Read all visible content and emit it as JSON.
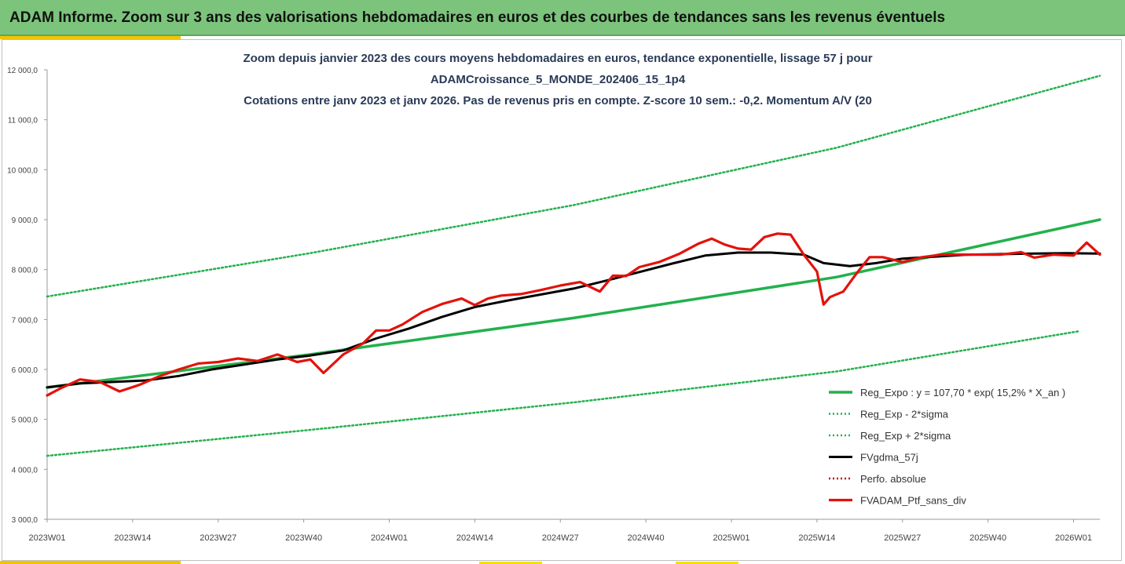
{
  "header": {
    "title": "ADAM Informe. Zoom sur 3 ans des valorisations hebdomadaires en euros et des courbes de tendances sans les revenus éventuels"
  },
  "chart_data": {
    "type": "line",
    "title_lines": [
      "Zoom depuis janvier 2023 des cours moyens hebdomadaires  en euros, tendance exponentielle, lissage 57 j pour",
      "ADAMCroissance_5_MONDE_202406_15_1p4",
      "Cotations entre janv 2023 et janv 2026. Pas de revenus pris en compte. Z-score 10 sem.: -0,2. Momentum  A/V (20"
    ],
    "xlabel": "",
    "ylabel": "",
    "ylim": [
      3000,
      12000
    ],
    "y_ticks": [
      3000,
      4000,
      5000,
      6000,
      7000,
      8000,
      9000,
      10000,
      11000,
      12000
    ],
    "y_tick_labels": [
      "3 000,0",
      "4 000,0",
      "5 000,0",
      "6 000,0",
      "7 000,0",
      "8 000,0",
      "9 000,0",
      "10 000,0",
      "11 000,0",
      "12 000,0"
    ],
    "x_tick_labels": [
      "2023W01",
      "2023W14",
      "2023W27",
      "2023W40",
      "2024W01",
      "2024W14",
      "2024W27",
      "2024W40",
      "2025W01",
      "2025W14",
      "2025W27",
      "2025W40",
      "2026W01"
    ],
    "x_tick_weeks": [
      0,
      13,
      26,
      39,
      52,
      65,
      78,
      91,
      104,
      117,
      130,
      143,
      156
    ],
    "x_range_weeks": [
      0,
      160
    ],
    "series": [
      {
        "name": "Reg_Expo : y = 107,70 * exp( 15,2% *  X_an )",
        "color": "#22b14c",
        "style": "solid",
        "x": [
          0,
          40,
          80,
          120,
          160
        ],
        "values": [
          5640,
          6300,
          7030,
          7850,
          9000
        ]
      },
      {
        "name": "Reg_Exp - 2*sigma",
        "color": "#22b14c",
        "style": "dotted",
        "x": [
          0,
          40,
          80,
          120,
          157
        ],
        "values": [
          4270,
          4790,
          5340,
          5960,
          6770
        ]
      },
      {
        "name": "Reg_Exp + 2*sigma",
        "color": "#22b14c",
        "style": "dotted",
        "x": [
          0,
          40,
          80,
          120,
          160
        ],
        "values": [
          7460,
          8330,
          9290,
          10440,
          11880
        ]
      },
      {
        "name": "FVgdma_57j",
        "color": "#000000",
        "style": "solid",
        "x": [
          0,
          5,
          10,
          15,
          20,
          25,
          30,
          35,
          40,
          45,
          50,
          55,
          60,
          65,
          70,
          75,
          80,
          85,
          90,
          95,
          100,
          105,
          110,
          115,
          118,
          122,
          126,
          130,
          135,
          140,
          145,
          150,
          155,
          160
        ],
        "values": [
          5640,
          5720,
          5750,
          5780,
          5870,
          6000,
          6100,
          6200,
          6280,
          6380,
          6620,
          6820,
          7050,
          7250,
          7380,
          7500,
          7620,
          7780,
          7950,
          8120,
          8280,
          8340,
          8340,
          8300,
          8130,
          8070,
          8130,
          8220,
          8260,
          8300,
          8310,
          8320,
          8330,
          8320
        ]
      },
      {
        "name": "Perfo. absolue",
        "color": "#c00000",
        "style": "dotted",
        "x": [],
        "values": []
      },
      {
        "name": "FVADAM_Ptf_sans_div",
        "color": "#e3120b",
        "style": "solid",
        "x": [
          0,
          2,
          5,
          8,
          11,
          14,
          17,
          20,
          23,
          26,
          29,
          32,
          35,
          38,
          40,
          42,
          45,
          48,
          50,
          52,
          54,
          57,
          60,
          63,
          65,
          67,
          69,
          72,
          75,
          78,
          81,
          84,
          86,
          88,
          90,
          93,
          96,
          99,
          101,
          103,
          105,
          107,
          109,
          111,
          113,
          115,
          117,
          118,
          119,
          121,
          123,
          125,
          127,
          130,
          133,
          136,
          139,
          142,
          145,
          148,
          150,
          153,
          156,
          158,
          160
        ],
        "values": [
          5480,
          5620,
          5800,
          5750,
          5560,
          5690,
          5860,
          6000,
          6120,
          6150,
          6220,
          6170,
          6300,
          6150,
          6200,
          5930,
          6300,
          6520,
          6780,
          6780,
          6900,
          7150,
          7310,
          7420,
          7290,
          7420,
          7480,
          7510,
          7590,
          7680,
          7750,
          7560,
          7880,
          7870,
          8050,
          8150,
          8310,
          8520,
          8620,
          8500,
          8420,
          8400,
          8650,
          8720,
          8700,
          8300,
          7960,
          7300,
          7450,
          7560,
          7920,
          8250,
          8250,
          8150,
          8250,
          8300,
          8300,
          8300,
          8300,
          8350,
          8240,
          8300,
          8280,
          8540,
          8300
        ]
      }
    ],
    "legend_position": "bottom-right"
  }
}
